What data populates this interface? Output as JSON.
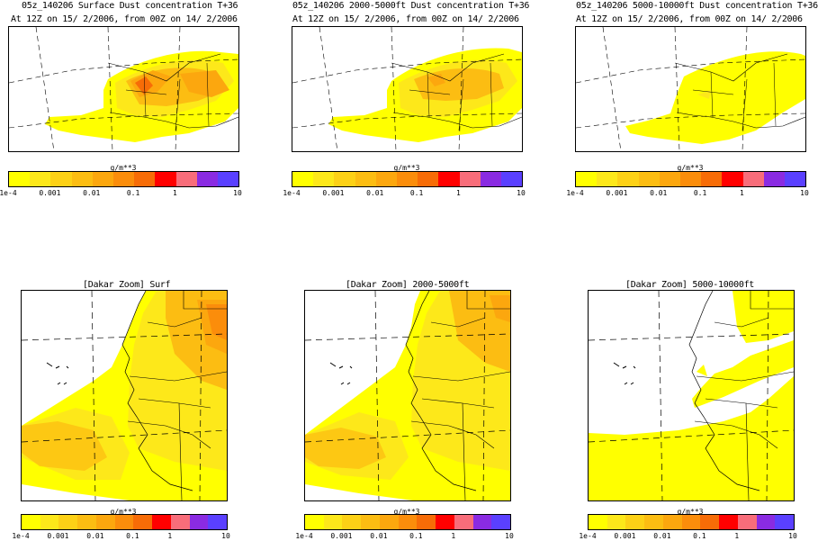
{
  "colors": [
    "#ffff00",
    "#fde81a",
    "#fdd116",
    "#fcbd12",
    "#fca70e",
    "#fb8d0b",
    "#f76c07",
    "#ff0000",
    "#f86d7a",
    "#8a2be2",
    "#5a40ff"
  ],
  "color_names": [
    "yellow",
    "light-orange",
    "orange",
    "dark-orange",
    "red",
    "pink",
    "purple",
    "blue"
  ],
  "colorbar": {
    "unit": "g/m**3",
    "ticks": [
      "1e-4",
      "0.001",
      "0.01",
      "0.1",
      "1",
      "10"
    ]
  },
  "top_panels": [
    {
      "title": "05z_140206 Surface Dust concentration T+36",
      "subtitle": "At 12Z on 15/ 2/2006, from 00Z on 14/ 2/2006"
    },
    {
      "title": "05z_140206 2000-5000ft Dust concentration T+36",
      "subtitle": "At 12Z on 15/ 2/2006, from 00Z on 14/ 2/2006"
    },
    {
      "title": "05z_140206 5000-10000ft Dust concentration T+36",
      "subtitle": "At 12Z on 15/ 2/2006, from 00Z on 14/ 2/2006"
    }
  ],
  "bottom_panels": [
    {
      "title": "[Dakar Zoom] Surf"
    },
    {
      "title": "[Dakar Zoom] 2000-5000ft"
    },
    {
      "title": "[Dakar Zoom] 5000-10000ft"
    }
  ]
}
